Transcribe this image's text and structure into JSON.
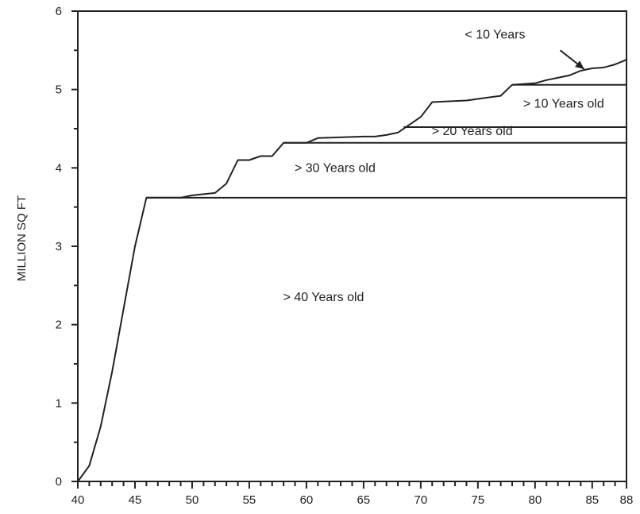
{
  "chart_data": {
    "type": "area",
    "title": "",
    "xlabel": "",
    "ylabel": "MILLION SQ FT",
    "xlim": [
      40,
      88
    ],
    "ylim": [
      0,
      6
    ],
    "grid": false,
    "legend": "none",
    "x_ticks": [
      40,
      45,
      50,
      55,
      60,
      65,
      70,
      75,
      80,
      85,
      88
    ],
    "x_tick_labels": [
      "40",
      "45",
      "50",
      "55",
      "60",
      "65",
      "70",
      "75",
      "80",
      "85",
      "88"
    ],
    "y_ticks": [
      0,
      1,
      2,
      3,
      4,
      5,
      6
    ],
    "y_tick_labels": [
      "0",
      "1",
      "2",
      "3",
      "4",
      "5",
      "6"
    ],
    "total": {
      "x": [
        40,
        41,
        42,
        43,
        44,
        45,
        46,
        49,
        50,
        52,
        53,
        54,
        55,
        56,
        57,
        58,
        60,
        61,
        65,
        66,
        67,
        68,
        69,
        70,
        71,
        74,
        75,
        76,
        77,
        78,
        80,
        81,
        82,
        83,
        84,
        85,
        86,
        87,
        88
      ],
      "y": [
        0,
        0.2,
        0.7,
        1.4,
        2.2,
        3.0,
        3.62,
        3.62,
        3.65,
        3.68,
        3.8,
        4.1,
        4.1,
        4.15,
        4.15,
        4.32,
        4.32,
        4.38,
        4.4,
        4.4,
        4.42,
        4.45,
        4.55,
        4.65,
        4.84,
        4.86,
        4.88,
        4.9,
        4.92,
        5.06,
        5.08,
        5.12,
        5.15,
        5.18,
        5.24,
        5.27,
        5.28,
        5.32,
        5.38
      ]
    },
    "boundaries": [
      {
        "label": "> 40 Years old",
        "x_from": 46,
        "x_to": 88,
        "y": 3.62
      },
      {
        "label": "> 30 Years old",
        "x_from": 58,
        "x_to": 88,
        "y": 4.32
      },
      {
        "label": "> 20 Years old",
        "x_from": 68.5,
        "x_to": 88,
        "y": 4.52
      },
      {
        "label": "> 10 Years old",
        "x_from": 78,
        "x_to": 88,
        "y": 5.06
      }
    ],
    "region_labels": [
      {
        "text": "> 40 Years old",
        "x": 61.5,
        "y": 2.3
      },
      {
        "text": "> 30 Years old",
        "x": 62.5,
        "y": 3.95
      },
      {
        "text": "> 20 Years old",
        "x": 74.5,
        "y": 4.42
      },
      {
        "text": "> 10 Years old",
        "x": 82.5,
        "y": 4.77
      },
      {
        "text": "< 10 Years",
        "x": 76.5,
        "y": 5.65
      }
    ],
    "annotation_arrow": {
      "from": [
        82.2,
        5.5
      ],
      "to": [
        84.3,
        5.26
      ]
    }
  }
}
